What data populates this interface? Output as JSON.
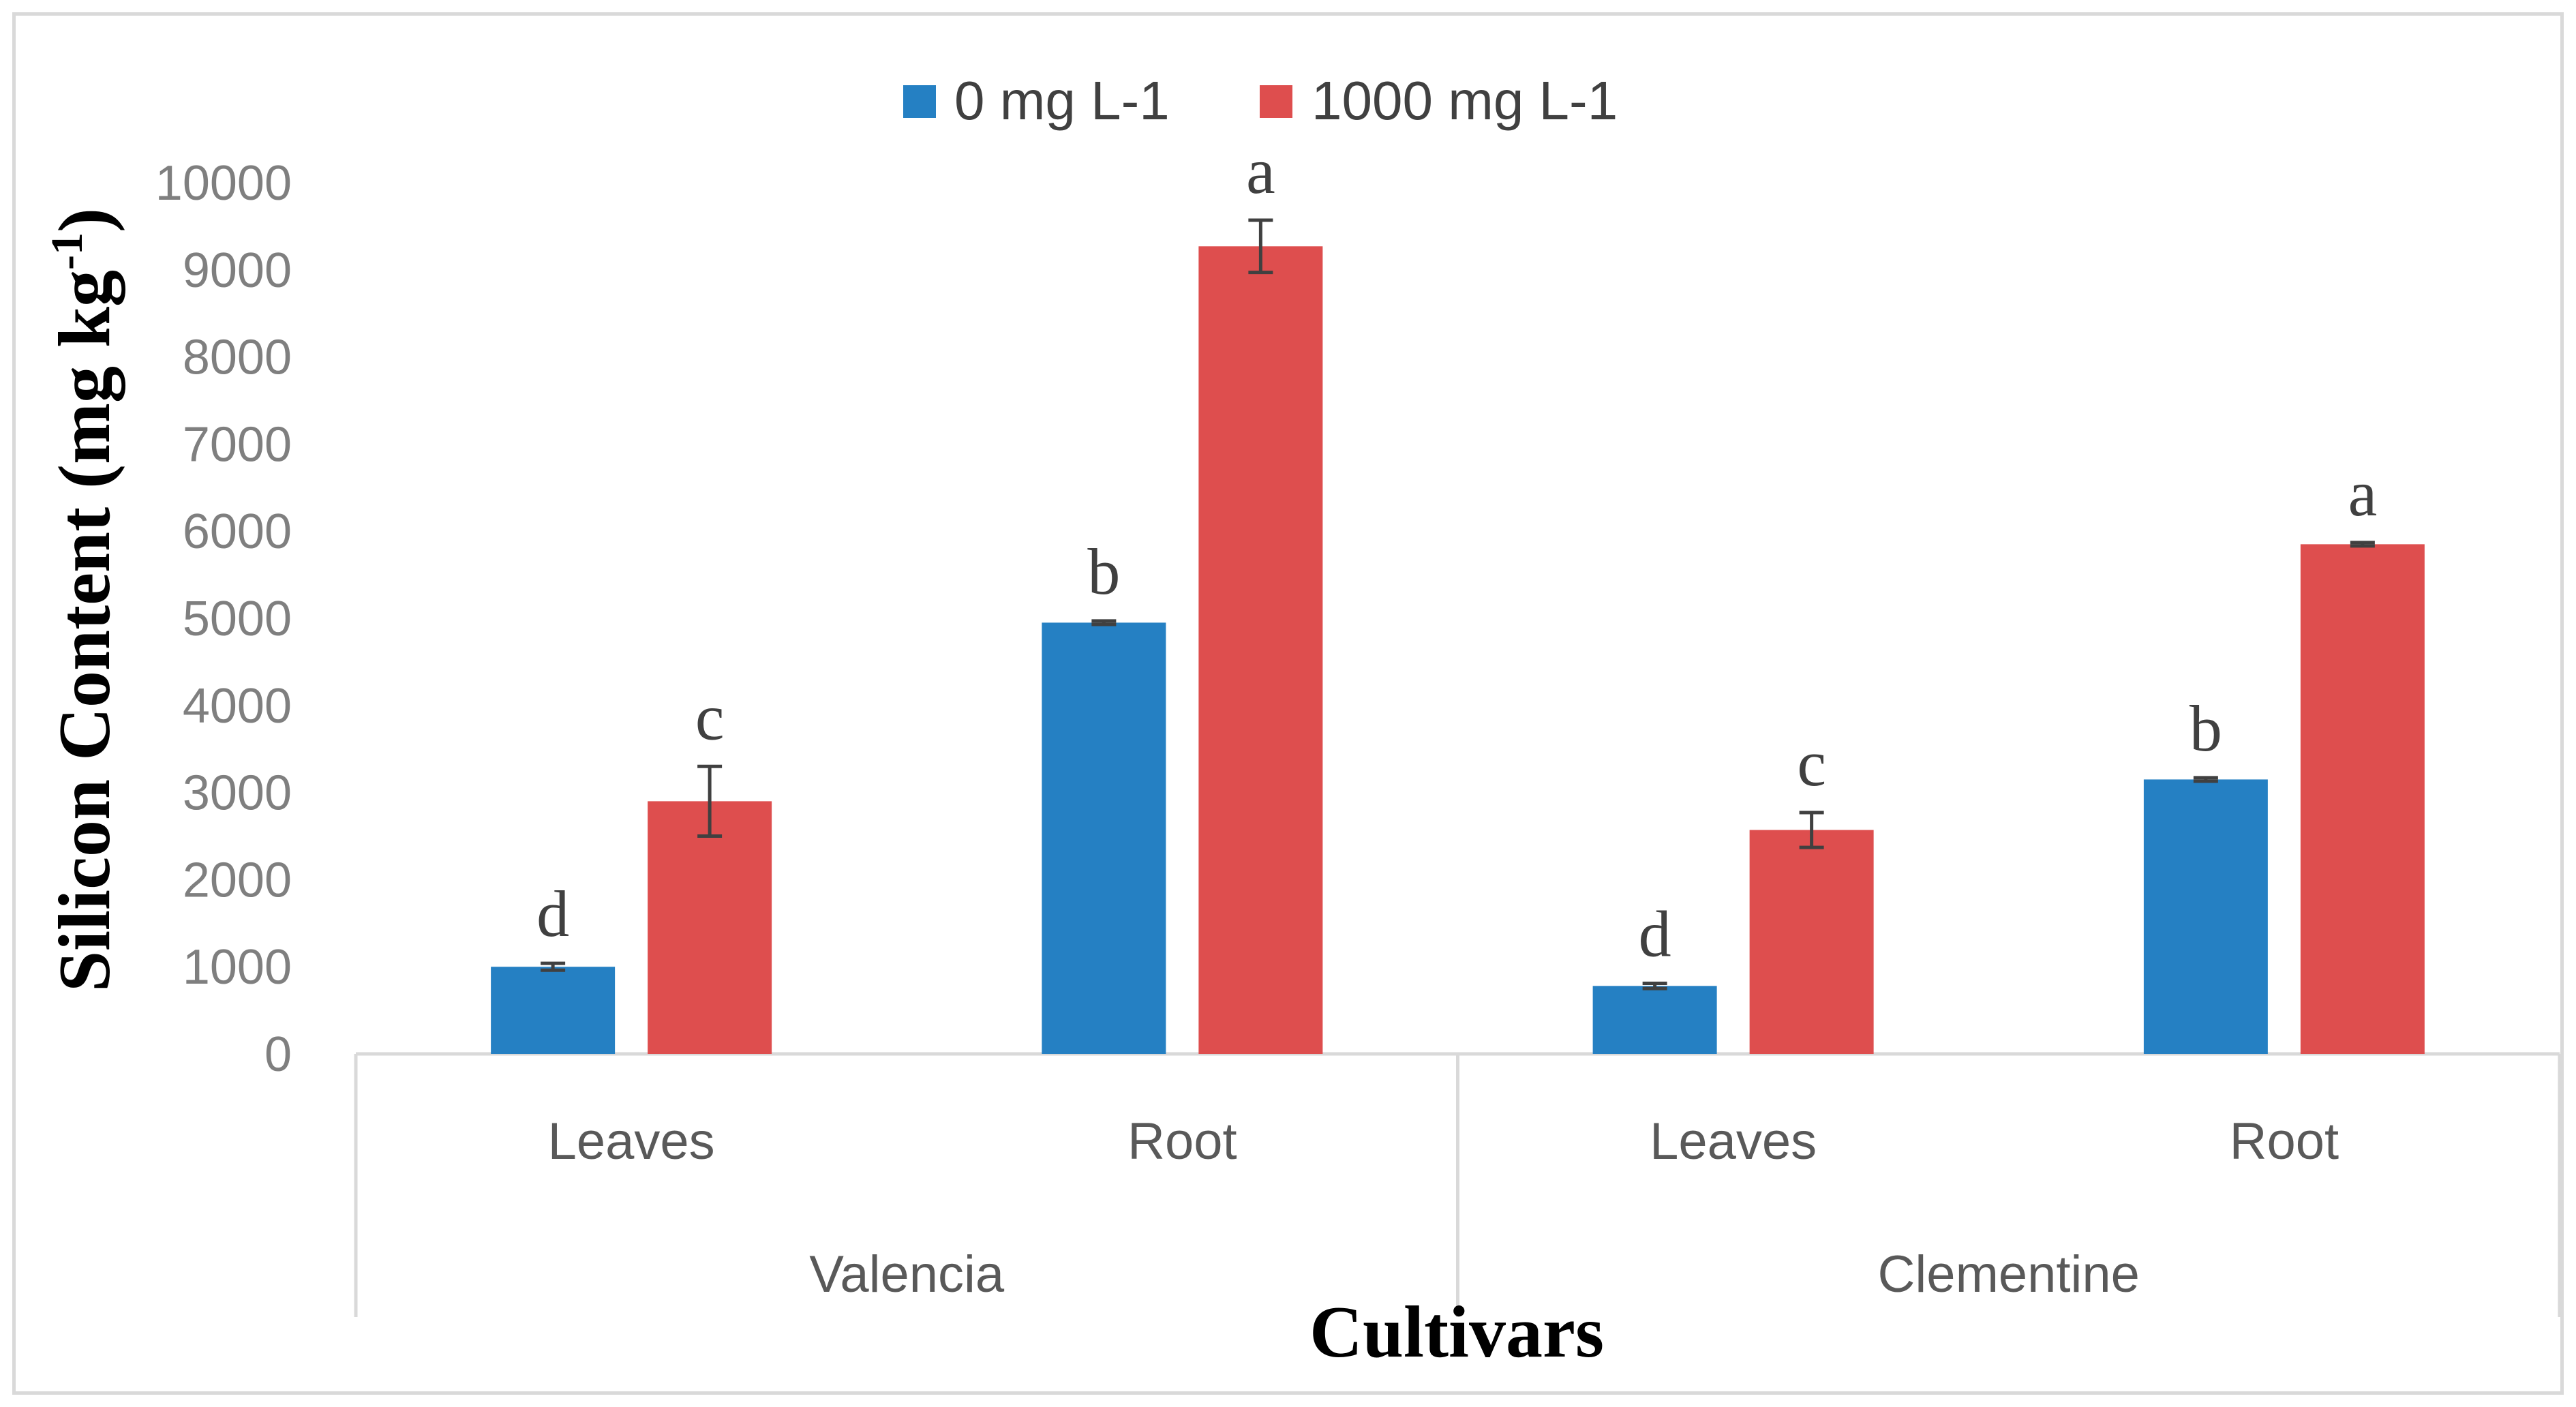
{
  "chart_data": {
    "type": "bar",
    "title": "",
    "xlabel": "Cultivars",
    "ylabel": {
      "main": "Silicon Content (mg kg",
      "superscript": "-1",
      "close": ")"
    },
    "ylim": [
      0,
      10000
    ],
    "yticks": [
      "0",
      "1000",
      "2000",
      "3000",
      "4000",
      "5000",
      "6000",
      "7000",
      "8000",
      "9000",
      "10000"
    ],
    "groups": [
      "Valencia",
      "Clementine"
    ],
    "categories": [
      "Leaves",
      "Root",
      "Leaves",
      "Root"
    ],
    "legend_position": "top",
    "series": [
      {
        "name": "0 mg L-1",
        "color": "#2580c3",
        "values": [
          1000,
          4950,
          780,
          3150
        ],
        "errors": [
          40,
          20,
          30,
          20
        ],
        "letters": [
          "d",
          "b",
          "d",
          "b"
        ]
      },
      {
        "name": "1000 mg L-1",
        "color": "#de4e4e",
        "values": [
          2900,
          9270,
          2570,
          5850
        ],
        "errors": [
          400,
          300,
          200,
          20
        ],
        "letters": [
          "c",
          "a",
          "c",
          "a"
        ]
      }
    ]
  }
}
